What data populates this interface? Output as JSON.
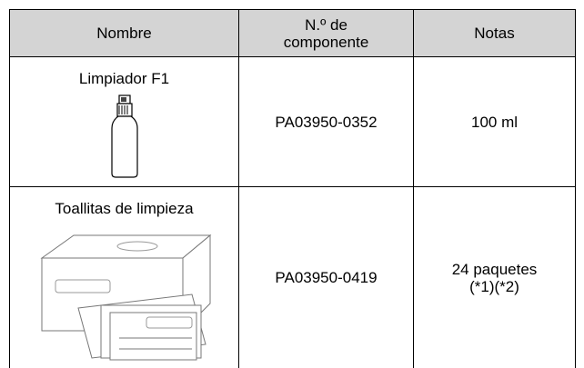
{
  "table": {
    "header": [
      "Nombre",
      "N.º de componente",
      "Notas"
    ],
    "rows": [
      [
        "Limpiador F1",
        "PA03950-0352",
        "100 ml"
      ],
      [
        "Toallitas de limpieza",
        "PA03950-0419",
        "24 paquetes (*1)(*2)"
      ]
    ]
  }
}
